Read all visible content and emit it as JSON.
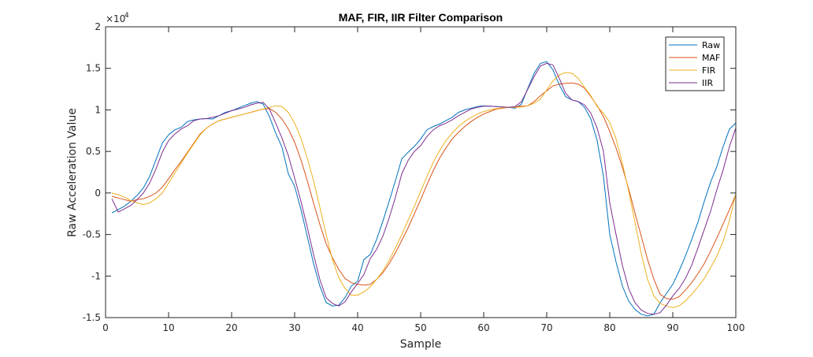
{
  "chart_data": {
    "type": "line",
    "title": "MAF, FIR, IIR Filter Comparison",
    "xlabel": "Sample",
    "ylabel": "Raw Acceleration Value",
    "y_exponent_label": "×10",
    "y_exponent_power": "4",
    "xlim": [
      0,
      100
    ],
    "ylim": [
      -15000,
      20000
    ],
    "xticks": [
      0,
      10,
      20,
      30,
      40,
      50,
      60,
      70,
      80,
      90,
      100
    ],
    "yticks": [
      -15000,
      -10000,
      -5000,
      0,
      5000,
      10000,
      15000,
      20000
    ],
    "ytick_labels": [
      "-1.5",
      "-1",
      "-0.5",
      "0",
      "0.5",
      "1",
      "1.5",
      "2"
    ],
    "legend_position": "top-right",
    "x": [
      1,
      2,
      3,
      4,
      5,
      6,
      7,
      8,
      9,
      10,
      11,
      12,
      13,
      14,
      15,
      16,
      17,
      18,
      19,
      20,
      21,
      22,
      23,
      24,
      25,
      26,
      27,
      28,
      29,
      30,
      31,
      32,
      33,
      34,
      35,
      36,
      37,
      38,
      39,
      40,
      41,
      42,
      43,
      44,
      45,
      46,
      47,
      48,
      49,
      50,
      51,
      52,
      53,
      54,
      55,
      56,
      57,
      58,
      59,
      60,
      61,
      62,
      63,
      64,
      65,
      66,
      67,
      68,
      69,
      70,
      71,
      72,
      73,
      74,
      75,
      76,
      77,
      78,
      79,
      80,
      81,
      82,
      83,
      84,
      85,
      86,
      87,
      88,
      89,
      90,
      91,
      92,
      93,
      94,
      95,
      96,
      97,
      98,
      99,
      100
    ],
    "series": [
      {
        "name": "Raw",
        "color": "#0072BD",
        "values": [
          -2400,
          -2000,
          -1600,
          -1000,
          -300,
          600,
          2000,
          4000,
          6000,
          7000,
          7600,
          7900,
          8600,
          8800,
          8900,
          8950,
          8900,
          9300,
          9700,
          9900,
          10200,
          10500,
          10800,
          11000,
          10700,
          9200,
          7200,
          5500,
          2300,
          800,
          -2000,
          -5200,
          -8500,
          -11200,
          -13200,
          -13600,
          -13500,
          -12600,
          -11200,
          -10600,
          -8000,
          -7400,
          -5600,
          -3400,
          -1000,
          1500,
          4100,
          4900,
          5600,
          6500,
          7600,
          8000,
          8300,
          8700,
          9100,
          9700,
          10000,
          10200,
          10400,
          10500,
          10450,
          10400,
          10350,
          10300,
          10200,
          10700,
          12600,
          14400,
          15600,
          15800,
          14800,
          13000,
          11600,
          11200,
          11000,
          10300,
          8900,
          6300,
          2000,
          -5000,
          -8300,
          -11200,
          -13000,
          -14000,
          -14600,
          -14800,
          -14600,
          -13200,
          -12100,
          -11000,
          -9400,
          -7600,
          -5600,
          -3500,
          -1000,
          1300,
          3200,
          5600,
          7700,
          8400
        ]
      },
      {
        "name": "MAF",
        "color": "#D95319",
        "values": [
          -400,
          -600,
          -800,
          -1000,
          -800,
          -700,
          -400,
          0,
          700,
          1700,
          2800,
          3800,
          4900,
          6000,
          7100,
          7800,
          8300,
          8700,
          8900,
          9100,
          9300,
          9500,
          9700,
          9900,
          10100,
          10150,
          9700,
          8900,
          7700,
          6100,
          4000,
          1500,
          -1200,
          -3800,
          -6100,
          -7800,
          -9200,
          -10300,
          -10800,
          -11000,
          -11100,
          -11000,
          -10400,
          -9600,
          -8500,
          -7200,
          -5700,
          -4200,
          -2500,
          -800,
          1000,
          2700,
          4200,
          5400,
          6500,
          7300,
          8000,
          8600,
          9100,
          9500,
          9800,
          10100,
          10200,
          10300,
          10400,
          10450,
          10500,
          11000,
          11700,
          12300,
          12900,
          13100,
          13200,
          13250,
          13100,
          12600,
          11600,
          10500,
          9200,
          7400,
          5400,
          3100,
          500,
          -2400,
          -5200,
          -8000,
          -10400,
          -12200,
          -12700,
          -12800,
          -12500,
          -11700,
          -10800,
          -9700,
          -8500,
          -7000,
          -5400,
          -3700,
          -2000,
          -200
        ]
      },
      {
        "name": "FIR",
        "color": "#EDB120",
        "values": [
          0,
          -200,
          -500,
          -900,
          -1200,
          -1400,
          -1200,
          -700,
          0,
          1200,
          2400,
          3600,
          4800,
          5900,
          7000,
          7800,
          8300,
          8700,
          8900,
          9100,
          9300,
          9500,
          9700,
          9900,
          10100,
          10300,
          10500,
          10400,
          9700,
          8400,
          6600,
          4200,
          1500,
          -1700,
          -5000,
          -8000,
          -10200,
          -11500,
          -12300,
          -12300,
          -11900,
          -11300,
          -10400,
          -9400,
          -8100,
          -6600,
          -5000,
          -3300,
          -1600,
          200,
          2000,
          3700,
          5100,
          6300,
          7200,
          8000,
          8600,
          9100,
          9500,
          9800,
          10000,
          10150,
          10250,
          10300,
          10300,
          10350,
          10500,
          10800,
          11300,
          12400,
          13500,
          14200,
          14500,
          14400,
          13800,
          12700,
          11700,
          10400,
          9600,
          8500,
          6500,
          3600,
          200,
          -3500,
          -7300,
          -10400,
          -12400,
          -13300,
          -13600,
          -13800,
          -13600,
          -13000,
          -12200,
          -11300,
          -10300,
          -9000,
          -7600,
          -5800,
          -3300,
          -100
        ]
      },
      {
        "name": "IIR",
        "color": "#7E2F8E",
        "values": [
          -700,
          -2300,
          -1900,
          -1500,
          -800,
          0,
          1200,
          2900,
          4900,
          6300,
          7100,
          7700,
          8100,
          8700,
          8900,
          8950,
          9100,
          9300,
          9600,
          9900,
          10100,
          10300,
          10600,
          10800,
          10900,
          10100,
          8400,
          6600,
          4500,
          1800,
          -1000,
          -4100,
          -7400,
          -10400,
          -12600,
          -13300,
          -13600,
          -13100,
          -11900,
          -10900,
          -9800,
          -7900,
          -6800,
          -5200,
          -3000,
          -500,
          2300,
          3900,
          5000,
          5700,
          6800,
          7600,
          8100,
          8400,
          8800,
          9300,
          9700,
          10100,
          10300,
          10450,
          10450,
          10400,
          10350,
          10300,
          10400,
          11000,
          12500,
          14000,
          15300,
          15600,
          15400,
          13800,
          12000,
          11200,
          11000,
          10600,
          9600,
          7800,
          5000,
          -1200,
          -5000,
          -8700,
          -11500,
          -13200,
          -14100,
          -14500,
          -14600,
          -14400,
          -13500,
          -12400,
          -11500,
          -10300,
          -8700,
          -6600,
          -4400,
          -2200,
          400,
          2800,
          5600,
          7800
        ]
      }
    ]
  }
}
